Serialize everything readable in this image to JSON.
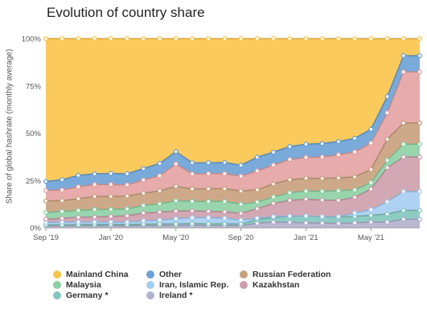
{
  "chart_data": {
    "type": "area",
    "stacked": true,
    "normalized": true,
    "title": "Evolution of country share",
    "xlabel": "",
    "ylabel": "Share of global hashrate (monthly average)",
    "ylim": [
      0,
      100
    ],
    "y_ticks": [
      "0%",
      "25%",
      "50%",
      "75%",
      "100%"
    ],
    "x_ticks": [
      "Sep '19",
      "Jan '20",
      "May '20",
      "Sep '20",
      "Jan '21",
      "May '21"
    ],
    "x": [
      "2019-09",
      "2019-10",
      "2019-11",
      "2019-12",
      "2020-01",
      "2020-02",
      "2020-03",
      "2020-04",
      "2020-05",
      "2020-06",
      "2020-07",
      "2020-08",
      "2020-09",
      "2020-10",
      "2020-11",
      "2020-12",
      "2021-01",
      "2021-02",
      "2021-03",
      "2021-04",
      "2021-05",
      "2021-06",
      "2021-07",
      "2021-08"
    ],
    "grid": true,
    "legend_position": "bottom",
    "series": [
      {
        "name": "Ireland *",
        "color": "#b2b1cf",
        "values": [
          1.0,
          1.0,
          1.1,
          1.1,
          1.1,
          1.1,
          1.2,
          1.2,
          1.3,
          1.3,
          1.2,
          1.2,
          1.1,
          2.4,
          3.0,
          2.9,
          2.6,
          2.5,
          2.3,
          2.6,
          3.0,
          3.0,
          4.5,
          4.5
        ]
      },
      {
        "name": "Germany *",
        "color": "#82c5bd",
        "values": [
          0.6,
          0.6,
          0.6,
          0.7,
          0.7,
          0.7,
          0.7,
          0.8,
          0.8,
          0.9,
          0.9,
          0.9,
          0.9,
          2.0,
          2.5,
          3.2,
          3.6,
          3.3,
          3.4,
          3.5,
          3.6,
          4.3,
          4.7,
          4.7
        ]
      },
      {
        "name": "Iran, Islamic Rep.",
        "color": "#a6cdf2",
        "values": [
          1.3,
          1.4,
          1.3,
          1.2,
          1.2,
          1.2,
          1.8,
          2.1,
          2.7,
          3.2,
          3.3,
          3.0,
          2.1,
          0.7,
          0.4,
          0.1,
          0.1,
          0.1,
          0.2,
          1.7,
          3.0,
          6.5,
          10.0,
          10.0
        ]
      },
      {
        "name": "Kazakhstan",
        "color": "#cc9eab",
        "values": [
          1.7,
          2.0,
          2.6,
          2.7,
          3.0,
          3.4,
          4.1,
          4.2,
          4.0,
          3.6,
          3.3,
          3.4,
          3.5,
          5.0,
          7.0,
          8.3,
          8.8,
          8.8,
          8.6,
          8.3,
          10.9,
          18.0,
          18.2,
          18.2
        ]
      },
      {
        "name": "Malaysia",
        "color": "#8dd0a4",
        "values": [
          3.5,
          3.6,
          3.6,
          4.0,
          3.7,
          3.6,
          4.0,
          4.4,
          5.5,
          5.0,
          5.2,
          5.4,
          4.9,
          3.5,
          3.4,
          4.0,
          4.3,
          4.6,
          5.1,
          3.9,
          3.4,
          3.9,
          6.8,
          6.8
        ]
      },
      {
        "name": "Russian Federation",
        "color": "#c8a07d",
        "values": [
          6.1,
          5.8,
          6.2,
          6.9,
          6.9,
          6.8,
          6.5,
          6.8,
          7.6,
          6.6,
          6.8,
          6.8,
          6.9,
          6.5,
          6.9,
          6.9,
          6.8,
          6.8,
          6.8,
          6.9,
          6.9,
          11.1,
          11.2,
          11.2
        ]
      },
      {
        "name": "Kazakhstan",
        "color": "#e3a2a1",
        "values": [
          5.5,
          5.6,
          6.3,
          6.3,
          6.3,
          5.9,
          7.0,
          8.0,
          11.9,
          7.9,
          7.9,
          7.9,
          7.9,
          10.0,
          10.0,
          10.7,
          11.0,
          11.3,
          12.2,
          13.2,
          14.0,
          14.0,
          27.0,
          27.0
        ]
      },
      {
        "name": "Other",
        "color": "#6aa1d6",
        "values": [
          4.8,
          5.4,
          6.0,
          5.6,
          5.8,
          5.9,
          6.0,
          6.5,
          6.5,
          5.9,
          5.8,
          5.9,
          5.8,
          7.2,
          6.8,
          6.9,
          7.0,
          7.2,
          7.0,
          7.2,
          7.3,
          8.6,
          8.6,
          8.6
        ]
      },
      {
        "name": "Mainland China",
        "color": "#f9c44b",
        "values": [
          75.5,
          74.6,
          72.3,
          71.5,
          71.3,
          71.4,
          68.7,
          66.0,
          59.7,
          65.6,
          65.6,
          65.5,
          66.9,
          62.7,
          60.0,
          57.0,
          55.8,
          55.4,
          54.4,
          52.7,
          47.9,
          30.6,
          9.0,
          9.0
        ]
      }
    ]
  },
  "legend": [
    {
      "label": "Mainland China",
      "color": "#f9c44b"
    },
    {
      "label": "Other",
      "color": "#6aa1d6"
    },
    {
      "label": "Russian Federation",
      "color": "#c8a07d"
    },
    {
      "label": "Malaysia",
      "color": "#8dd0a4"
    },
    {
      "label": "Iran, Islamic Rep.",
      "color": "#a6cdf2"
    },
    {
      "label": "Kazakhstan",
      "color": "#cc9eab"
    },
    {
      "label": "Germany *",
      "color": "#82c5bd"
    },
    {
      "label": "Ireland *",
      "color": "#b2b1cf"
    }
  ]
}
